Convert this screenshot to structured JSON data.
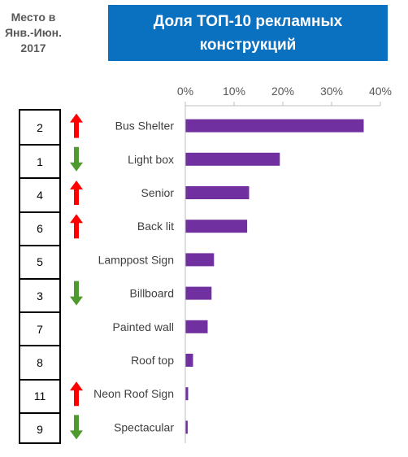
{
  "header": {
    "rank_title_lines": [
      "Место в",
      "Янв.-Июн.",
      "2017"
    ],
    "chart_title": "Доля ТОП-10 рекламных конструкций"
  },
  "colors": {
    "bar": "#7030a0",
    "up_arrow": "#ff0000",
    "down_arrow": "#4e9a2e",
    "title_bg": "#0a70c0"
  },
  "rows": [
    {
      "rank": "2",
      "trend": "up"
    },
    {
      "rank": "1",
      "trend": "down"
    },
    {
      "rank": "4",
      "trend": "up"
    },
    {
      "rank": "6",
      "trend": "up"
    },
    {
      "rank": "5",
      "trend": "none"
    },
    {
      "rank": "3",
      "trend": "down"
    },
    {
      "rank": "7",
      "trend": "none"
    },
    {
      "rank": "8",
      "trend": "none"
    },
    {
      "rank": "11",
      "trend": "up"
    },
    {
      "rank": "9",
      "trend": "down"
    }
  ],
  "chart_data": {
    "type": "bar",
    "orientation": "horizontal",
    "categories": [
      "Bus Shelter",
      "Light box",
      "Senior",
      "Back lit",
      "Lamppost Sign",
      "Billboard",
      "Painted wall",
      "Roof top",
      "Neon Roof Sign",
      "Spectacular"
    ],
    "values": [
      36.5,
      19.3,
      13.0,
      12.6,
      5.8,
      5.3,
      4.5,
      1.5,
      0.5,
      0.4
    ],
    "x_ticks": [
      "0%",
      "10%",
      "20%",
      "30%",
      "40%"
    ],
    "xlim": [
      0,
      40
    ],
    "title": "Доля ТОП-10 рекламных конструкций",
    "xlabel": "",
    "ylabel": "",
    "grid": false,
    "legend": "none"
  }
}
